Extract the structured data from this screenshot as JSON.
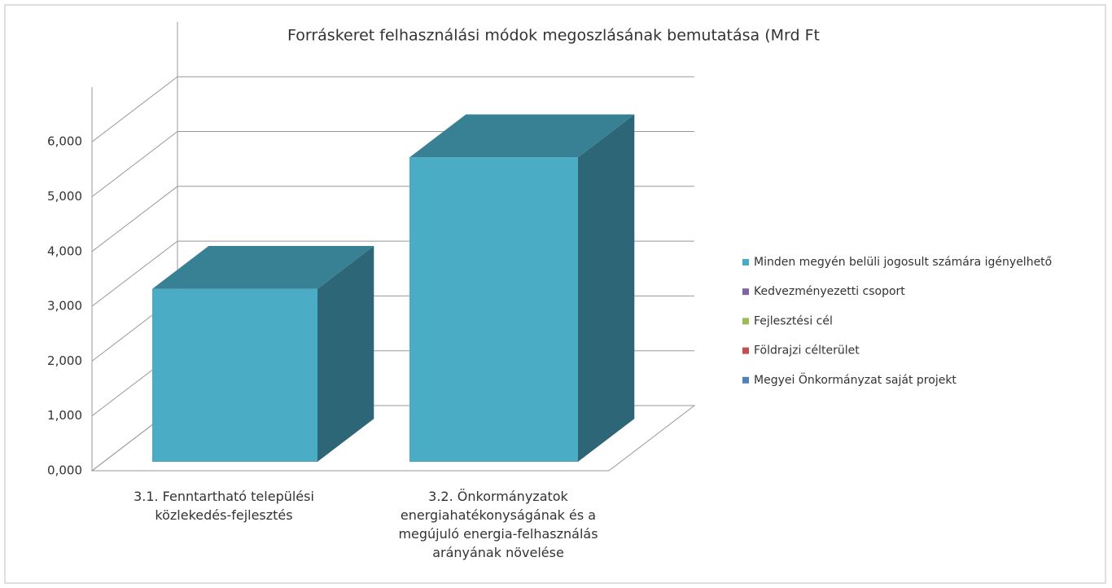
{
  "chart_data": {
    "type": "bar3d_stacked",
    "title": "Forráskeret felhasználási módok megoszlásának bemutatása (Mrd Ft",
    "categories": [
      "3.1. Fenntartható települési közlekedés-fejlesztés",
      "3.2. Önkormányzatok energiahatékonyságának és a megújuló energia-felhasználás arányának növelése"
    ],
    "series": [
      {
        "name": "Minden megyén belüli jogosult számára igényelhető",
        "color": "#4bacc6",
        "values": [
          3.15,
          5.55
        ]
      },
      {
        "name": "Kedvezményezetti csoport",
        "color": "#8064a2",
        "values": [
          0,
          0
        ]
      },
      {
        "name": "Fejlesztési cél",
        "color": "#9bbb59",
        "values": [
          0,
          0
        ]
      },
      {
        "name": "Földrajzi célterület",
        "color": "#c0504d",
        "values": [
          0,
          0
        ]
      },
      {
        "name": "Megyei Önkormányzat saját projekt",
        "color": "#4f81bd",
        "values": [
          0,
          0
        ]
      }
    ],
    "ylim": [
      0,
      7
    ],
    "yticks": [
      {
        "value": 0,
        "label": "0,000"
      },
      {
        "value": 1,
        "label": "1,000"
      },
      {
        "value": 2,
        "label": "2,000"
      },
      {
        "value": 3,
        "label": "3,000"
      },
      {
        "value": 4,
        "label": "4,000"
      },
      {
        "value": 5,
        "label": "5,000"
      },
      {
        "value": 6,
        "label": "6,000"
      }
    ],
    "grid": true,
    "legend": "right"
  }
}
